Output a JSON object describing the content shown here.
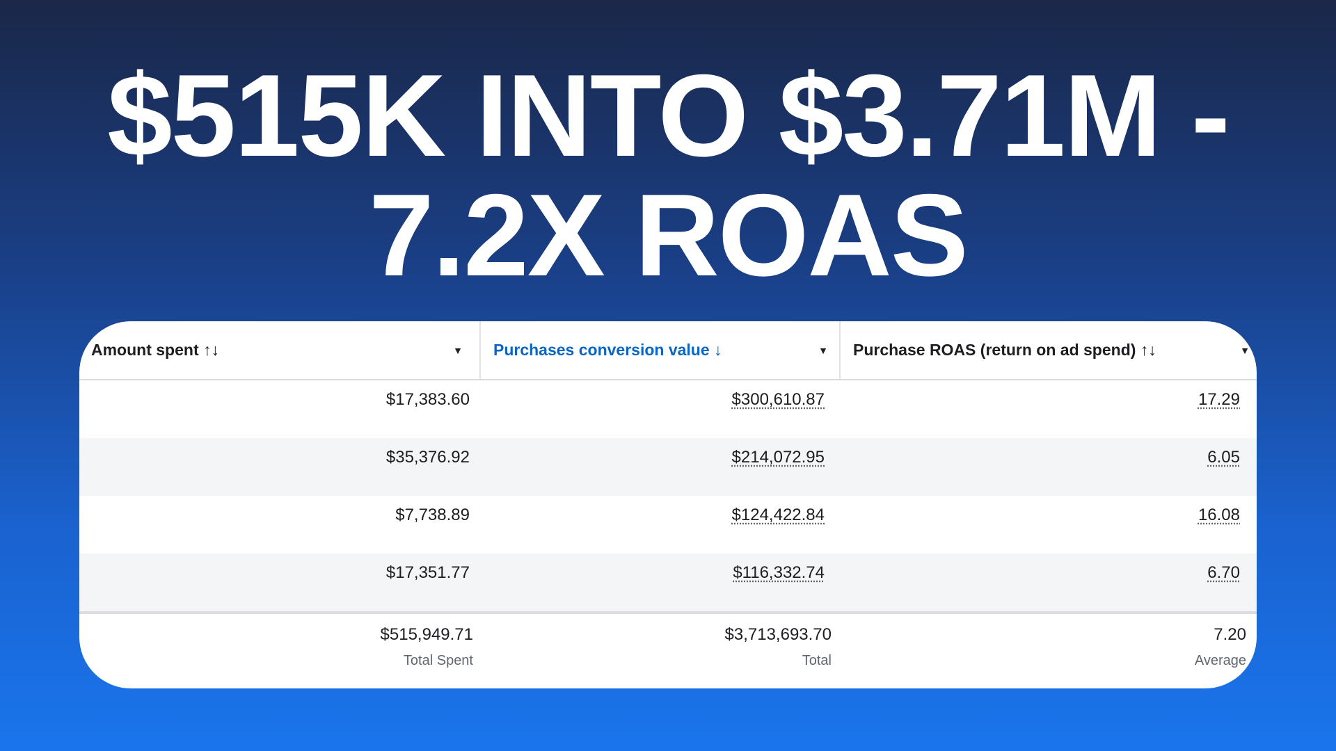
{
  "headline": {
    "line1": "$515K INTO $3.71M -",
    "line2": "7.2X ROAS"
  },
  "table": {
    "columns": [
      {
        "label": "Amount spent",
        "sort_icon": "↑↓",
        "caret": "▼"
      },
      {
        "label": "Purchases conversion value",
        "sort_icon": "↓",
        "caret": "▼",
        "active": true,
        "color": "#0a66c2"
      },
      {
        "label": "Purchase ROAS (return on ad spend)",
        "sort_icon": "↑↓",
        "caret": "▼"
      }
    ],
    "rows": [
      [
        "$17,383.60",
        "$300,610.87",
        "17.29"
      ],
      [
        "$35,376.92",
        "$214,072.95",
        "6.05"
      ],
      [
        "$7,738.89",
        "$124,422.84",
        "16.08"
      ],
      [
        "$17,351.77",
        "$116,332.74",
        "6.70"
      ]
    ],
    "totals": [
      {
        "value": "$515,949.71",
        "label": "Total Spent"
      },
      {
        "value": "$3,713,693.70",
        "label": "Total"
      },
      {
        "value": "7.20",
        "label": "Average"
      }
    ]
  },
  "colors": {
    "bg_top": "#1a2748",
    "bg_bottom": "#1a75ec",
    "accent": "#0a66c2"
  }
}
